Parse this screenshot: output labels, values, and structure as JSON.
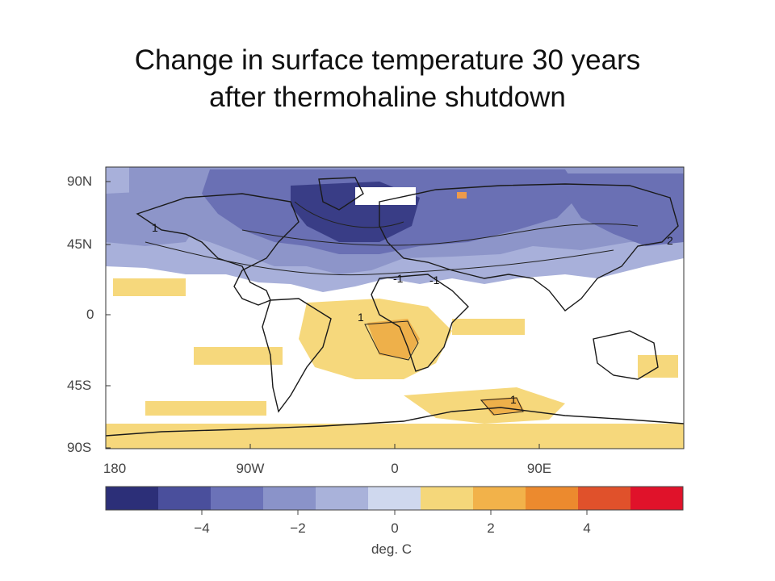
{
  "title": {
    "line1": "Change in surface temperature 30 years",
    "line2": "after thermohaline shutdown"
  },
  "map": {
    "lat_labels": [
      "90N",
      "45N",
      "0",
      "45S",
      "90S"
    ],
    "lon_labels": [
      "180",
      "90W",
      "0",
      "90E"
    ],
    "contour_labels": [
      "1",
      "1",
      "-1",
      "-1",
      "2",
      "1"
    ]
  },
  "colorbar": {
    "tick_labels": [
      "−4",
      "−2",
      "0",
      "2",
      "4"
    ],
    "unit": "deg. C",
    "colors": [
      "#2c2f78",
      "#4a4f9c",
      "#6b72b8",
      "#8a93c9",
      "#a9b2da",
      "#cfd8ee",
      "#f5d77a",
      "#f2b24a",
      "#ec8a2e",
      "#e0512b",
      "#e0122a"
    ]
  },
  "palette": {
    "cool_strong": "#34387f",
    "cool_mid": "#5b61a8",
    "cool": "#8891c6",
    "cool_light": "#aeb6dd",
    "neutral": "#ffffff",
    "warm_light": "#f6d87c",
    "warm": "#eeb04a",
    "land_outline": "#1a1a1a"
  }
}
